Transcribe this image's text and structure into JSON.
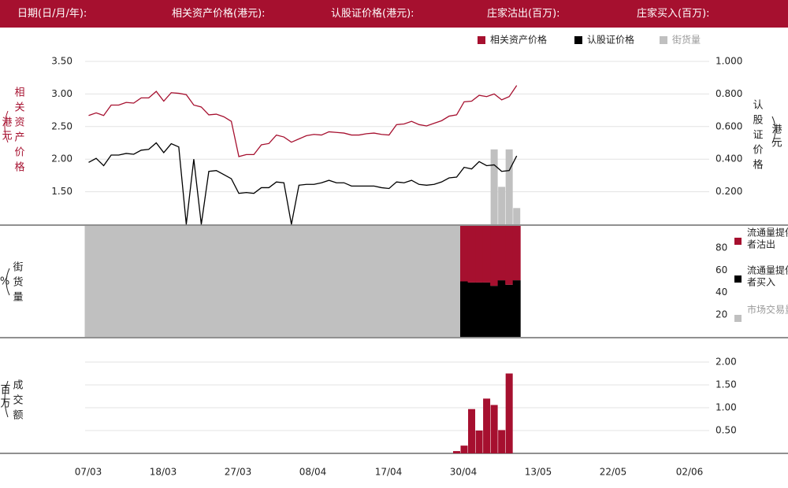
{
  "header": {
    "date_label": "日期(日/月/年):",
    "underlying_label": "相关资产价格(港元):",
    "warrant_label": "认股证价格(港元):",
    "lp_sell_label": "庄家沽出(百万):",
    "lp_buy_label": "庄家买入(百万):"
  },
  "colors": {
    "brand": "#a6102f",
    "warrant": "#000000",
    "street": "#c0c0c0"
  },
  "chart_data": [
    {
      "type": "line",
      "legend": [
        "相关资产价格",
        "认股证价格",
        "街货量"
      ],
      "legend_position": "top-right",
      "left_axis_label": "相关资产价格（港元）",
      "left_ticks": [
        "3.50",
        "3.00",
        "2.50",
        "2.00",
        "1.50"
      ],
      "left_ylim": [
        1.0,
        3.5
      ],
      "right_axis_label": "认股证价格（港元）",
      "right_ticks": [
        "1.000",
        "0.800",
        "0.600",
        "0.400",
        "0.200"
      ],
      "right_ylim": [
        0.0,
        1.0
      ],
      "series": [
        {
          "name": "相关资产价格",
          "axis": "left",
          "values": [
            2.67,
            2.71,
            2.67,
            2.83,
            2.83,
            2.87,
            2.86,
            2.94,
            2.94,
            3.04,
            2.89,
            3.02,
            3.01,
            2.99,
            2.83,
            2.8,
            2.68,
            2.69,
            2.65,
            2.58,
            2.04,
            2.07,
            2.07,
            2.22,
            2.24,
            2.37,
            2.34,
            2.26,
            2.31,
            2.36,
            2.38,
            2.37,
            2.42,
            2.41,
            2.4,
            2.37,
            2.37,
            2.39,
            2.4,
            2.38,
            2.37,
            2.53,
            2.54,
            2.58,
            2.53,
            2.51,
            2.55,
            2.59,
            2.66,
            2.68,
            2.88,
            2.89,
            2.98,
            2.96,
            3.0,
            2.91,
            2.96,
            3.13
          ]
        },
        {
          "name": "认股证价格",
          "axis": "right",
          "values": [
            0.38,
            0.405,
            0.36,
            0.425,
            0.425,
            0.435,
            0.43,
            0.455,
            0.46,
            0.5,
            0.44,
            0.495,
            0.475,
            0.0,
            0.4,
            0.0,
            0.325,
            0.33,
            0.305,
            0.28,
            0.19,
            0.195,
            0.19,
            0.225,
            0.225,
            0.26,
            0.255,
            0.0,
            0.24,
            0.245,
            0.245,
            0.255,
            0.27,
            0.255,
            0.255,
            0.235,
            0.235,
            0.235,
            0.235,
            0.225,
            0.22,
            0.26,
            0.255,
            0.27,
            0.245,
            0.24,
            0.245,
            0.26,
            0.285,
            0.29,
            0.35,
            0.34,
            0.385,
            0.36,
            0.365,
            0.325,
            0.33,
            0.42
          ]
        },
        {
          "name": "街货量",
          "axis": "right",
          "type": "bar",
          "values": [
            0.46,
            0.23,
            0.46,
            0.1
          ],
          "start_index": 54
        }
      ]
    },
    {
      "type": "bar",
      "stacked": true,
      "y_axis_label": "街货量（%）",
      "ticks": [
        "80",
        "60",
        "40",
        "20"
      ],
      "ylim": [
        0,
        100
      ],
      "legend": [
        "流通量提供者沽出",
        "流通量提供者买入",
        "市场交易量"
      ],
      "legend_position": "right",
      "series": [
        {
          "name": "流通量提供者沽出",
          "values": [
            0,
            0,
            0,
            0,
            0,
            0,
            0,
            0,
            0,
            0,
            0,
            0,
            0,
            0,
            0,
            0,
            0,
            0,
            0,
            0,
            0,
            0,
            0,
            0,
            0,
            0,
            0,
            0,
            0,
            0,
            0,
            0,
            0,
            0,
            0,
            0,
            0,
            0,
            0,
            0,
            0,
            0,
            0,
            0,
            0,
            0,
            0,
            0,
            0,
            0,
            50,
            51,
            51,
            51,
            54,
            49,
            53,
            49
          ]
        },
        {
          "name": "流通量提供者买入",
          "values": [
            0,
            0,
            0,
            0,
            0,
            0,
            0,
            0,
            0,
            0,
            0,
            0,
            0,
            0,
            0,
            0,
            0,
            0,
            0,
            0,
            0,
            0,
            0,
            0,
            0,
            0,
            0,
            0,
            0,
            0,
            0,
            0,
            0,
            0,
            0,
            0,
            0,
            0,
            0,
            0,
            0,
            0,
            0,
            0,
            0,
            0,
            0,
            0,
            0,
            0,
            50,
            49,
            49,
            49,
            46,
            51,
            47,
            51
          ]
        },
        {
          "name": "市场交易量",
          "values": [
            100,
            100,
            100,
            100,
            100,
            100,
            100,
            100,
            100,
            100,
            100,
            100,
            100,
            100,
            100,
            100,
            100,
            100,
            100,
            100,
            100,
            100,
            100,
            100,
            100,
            100,
            100,
            100,
            100,
            100,
            100,
            100,
            100,
            100,
            100,
            100,
            100,
            100,
            100,
            100,
            100,
            100,
            100,
            100,
            100,
            100,
            100,
            100,
            100,
            100,
            0,
            0,
            0,
            0,
            0,
            0,
            0,
            0
          ]
        }
      ]
    },
    {
      "type": "bar",
      "y_axis_label": "成交额（百万）",
      "ticks": [
        "2.00",
        "1.50",
        "1.00",
        "0.50"
      ],
      "ylim": [
        0,
        2.0
      ],
      "start_index": 49,
      "values": [
        0.05,
        0.17,
        0.97,
        0.5,
        1.2,
        1.06,
        0.51,
        1.75
      ]
    }
  ],
  "x_tick_labels": [
    "07/03",
    "18/03",
    "27/03",
    "08/04",
    "17/04",
    "30/04",
    "13/05",
    "22/05",
    "02/06"
  ]
}
